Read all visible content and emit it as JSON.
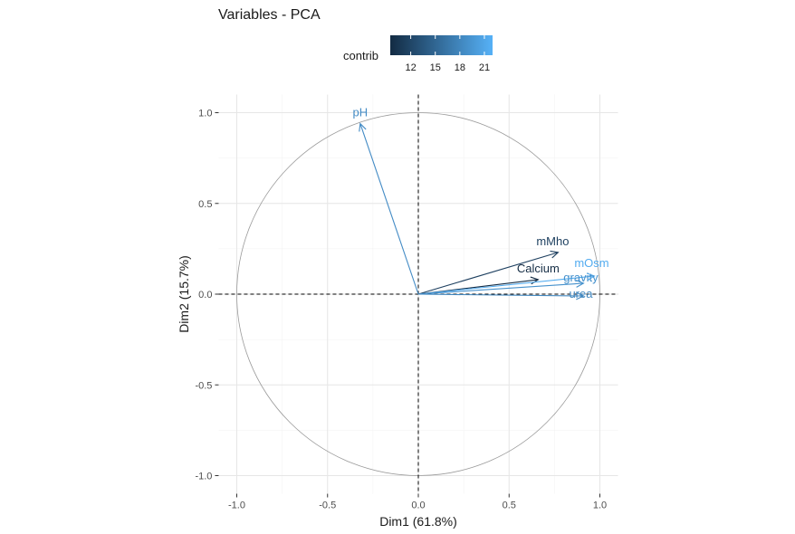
{
  "chart_data": {
    "type": "scatter",
    "subtype": "pca-variable-correlation-circle",
    "title": "Variables - PCA",
    "xlabel": "Dim1 (61.8%)",
    "ylabel": "Dim2 (15.7%)",
    "xlim": [
      -1.1,
      1.1
    ],
    "ylim": [
      -1.1,
      1.1
    ],
    "x_ticks": [
      -1.0,
      -0.5,
      0.0,
      0.5,
      1.0
    ],
    "y_ticks": [
      -1.0,
      -0.5,
      0.0,
      0.5,
      1.0
    ],
    "x_tick_labels": [
      "-1.0",
      "-0.5",
      "0.0",
      "0.5",
      "1.0"
    ],
    "y_tick_labels": [
      "-1.0",
      "-0.5",
      "0.0",
      "0.5",
      "1.0"
    ],
    "grid": true,
    "unit_circle": true,
    "legend": {
      "title": "contrib",
      "position": "top",
      "min": 9.5,
      "max": 22,
      "ticks": [
        12,
        15,
        18,
        21
      ],
      "tick_labels": [
        "12",
        "15",
        "18",
        "21"
      ],
      "color_low": "#132B43",
      "color_high": "#56B1F7"
    },
    "variables": [
      {
        "label": "pH",
        "x": -0.32,
        "y": 0.94,
        "contrib": 18.5
      },
      {
        "label": "mMho",
        "x": 0.77,
        "y": 0.23,
        "contrib": 11.5
      },
      {
        "label": "Calcium",
        "x": 0.66,
        "y": 0.08,
        "contrib": 9.6
      },
      {
        "label": "mOsm",
        "x": 0.97,
        "y": 0.1,
        "contrib": 21.5
      },
      {
        "label": "gravity",
        "x": 0.91,
        "y": 0.06,
        "contrib": 19.0
      },
      {
        "label": "urea",
        "x": 0.91,
        "y": -0.01,
        "contrib": 18.2
      }
    ]
  }
}
